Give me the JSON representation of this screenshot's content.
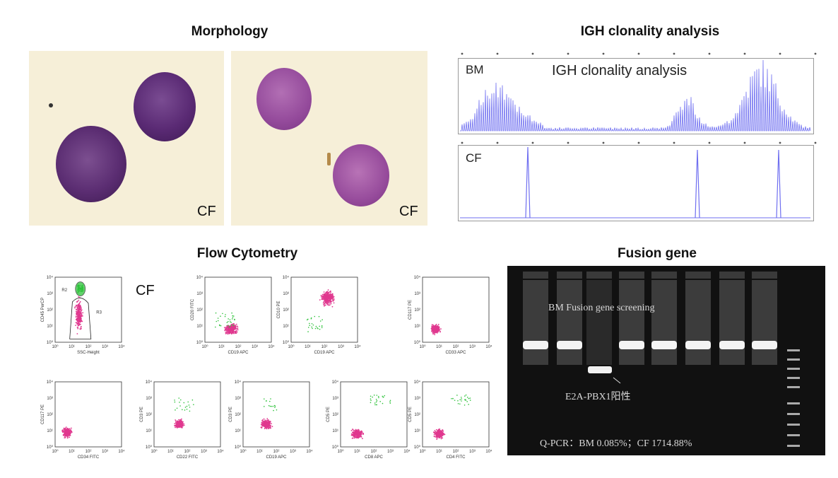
{
  "sections": {
    "morphology": "Morphology",
    "igh": "IGH clonality analysis",
    "flow": "Flow Cytometry",
    "fusion": "Fusion gene"
  },
  "morphology": {
    "panel1_label": "CF",
    "panel2_label": "CF"
  },
  "igh_panel": {
    "bm_label": "BM",
    "cf_label": "CF",
    "inner_title": "IGH clonality analysis"
  },
  "flow": {
    "cf_label": "CF",
    "tick_labels": [
      "10⁰",
      "10¹",
      "10²",
      "10³",
      "10⁴"
    ],
    "plots": [
      {
        "ylabel": "CD45 PerCP",
        "xlabel": "SSC-Height",
        "gates": [
          "R2",
          "R3"
        ]
      },
      {
        "ylabel": "CD20 FITC",
        "xlabel": "CD19 APC"
      },
      {
        "ylabel": "CD10 PE",
        "xlabel": "CD19 APC"
      },
      {
        "ylabel": "CD117 PE",
        "xlabel": "CD33 APC"
      },
      {
        "ylabel": "CD117 PE",
        "xlabel": "CD34 FITC"
      },
      {
        "ylabel": "CD3 PE",
        "xlabel": "CD22 FITC"
      },
      {
        "ylabel": "CD3 PE",
        "xlabel": "CD19 APC"
      },
      {
        "ylabel": "CD5 PE",
        "xlabel": "CD8 APC"
      },
      {
        "ylabel": "CD5 PE",
        "xlabel": "CD4 FITC"
      }
    ]
  },
  "gel": {
    "screening": "BM Fusion gene screening",
    "positive": "E2A-PBX1阳性",
    "qpcr": "Q-PCR：BM 0.085%；CF 1714.88%"
  },
  "colors": {
    "cells": "#5a2a74",
    "scatter": "#e0388f",
    "gate": "#2ec23a",
    "trace": "#6f6ff0"
  }
}
